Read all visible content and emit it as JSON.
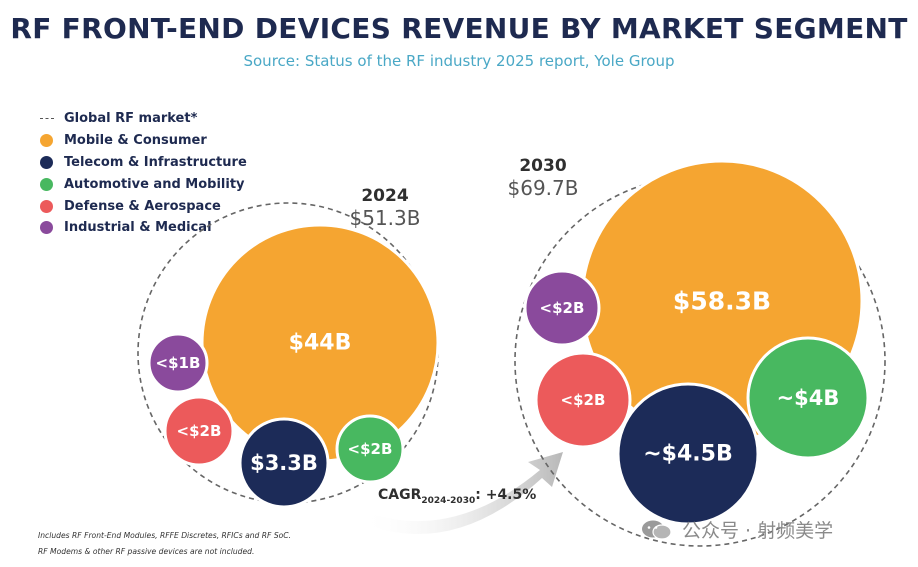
{
  "header": {
    "title": "RF FRONT-END DEVICES REVENUE BY MARKET SEGMENT",
    "subtitle": "Source: Status of the RF industry 2025 report, Yole Group"
  },
  "legend": [
    {
      "label": "Global RF market*",
      "style": "dashed",
      "color": "#555555"
    },
    {
      "label": "Mobile & Consumer",
      "style": "dot",
      "color": "#f5a531"
    },
    {
      "label": "Telecom & Infrastructure",
      "style": "dot",
      "color": "#1c2b58"
    },
    {
      "label": "Automotive and Mobility",
      "style": "dot",
      "color": "#48b860"
    },
    {
      "label": "Defense & Aerospace",
      "style": "dot",
      "color": "#ec5a5b"
    },
    {
      "label": "Industrial & Medical",
      "style": "dot",
      "color": "#8a4a9c"
    }
  ],
  "chart_data": {
    "type": "bubble",
    "title": "RF FRONT-END DEVICES REVENUE BY MARKET SEGMENT",
    "unit": "USD billions",
    "panels": [
      {
        "year": "2024",
        "total_label": "$51.3B",
        "total": 51.3,
        "segments": [
          {
            "name": "Mobile & Consumer",
            "label": "$44B",
            "value": 44,
            "color": "#f5a531"
          },
          {
            "name": "Telecom & Infrastructure",
            "label": "$3.3B",
            "value": 3.3,
            "color": "#1c2b58"
          },
          {
            "name": "Automotive and Mobility",
            "label": "<$2B",
            "value": 2,
            "color": "#48b860"
          },
          {
            "name": "Defense & Aerospace",
            "label": "<$2B",
            "value": 2,
            "color": "#ec5a5b"
          },
          {
            "name": "Industrial & Medical",
            "label": "<$1B",
            "value": 1,
            "color": "#8a4a9c"
          }
        ]
      },
      {
        "year": "2030",
        "total_label": "$69.7B",
        "total": 69.7,
        "segments": [
          {
            "name": "Mobile & Consumer",
            "label": "$58.3B",
            "value": 58.3,
            "color": "#f5a531"
          },
          {
            "name": "Telecom & Infrastructure",
            "label": "~$4.5B",
            "value": 4.5,
            "color": "#1c2b58"
          },
          {
            "name": "Automotive and Mobility",
            "label": "~$4B",
            "value": 4,
            "color": "#48b860"
          },
          {
            "name": "Defense & Aerospace",
            "label": "<$2B",
            "value": 2,
            "color": "#ec5a5b"
          },
          {
            "name": "Industrial & Medical",
            "label": "<$2B",
            "value": 2,
            "color": "#8a4a9c"
          }
        ]
      }
    ],
    "cagr": {
      "prefix": "CAGR",
      "period": "2024-2030",
      "suffix": ": +4.5%",
      "value": 4.5
    }
  },
  "footnotes": [
    "Includes RF Front-End Modules, RFFE Discretes, RFICs and RF SoC.",
    "RF Modems & other RF passive devices are not included."
  ],
  "watermark": "公众号 · 射频美学"
}
